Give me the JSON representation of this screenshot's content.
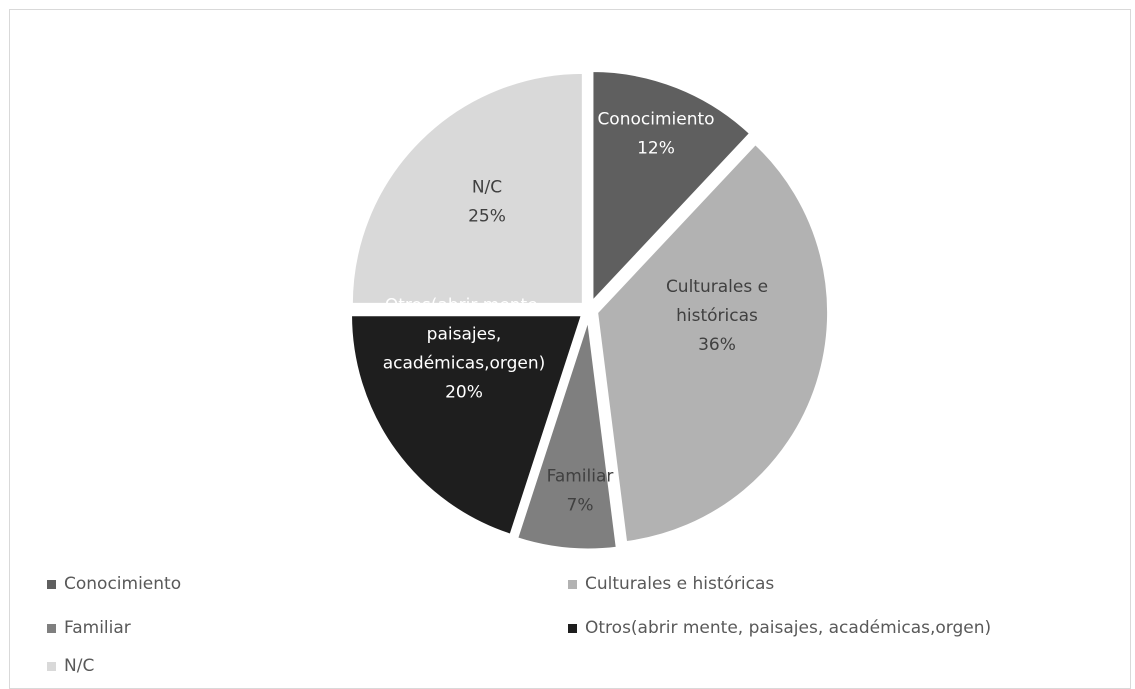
{
  "chart_data": {
    "type": "pie",
    "title": "",
    "legend_position": "bottom",
    "slices": [
      {
        "name": "Conocimiento",
        "label": "Conocimiento",
        "value": 12,
        "percent_label": "12%",
        "color": "#5f5f5f",
        "label_color": "#ffffff"
      },
      {
        "name": "Culturales e históricas",
        "label": "Culturales e históricas",
        "value": 36,
        "percent_label": "36%",
        "color": "#b2b2b2",
        "label_color": "#404040"
      },
      {
        "name": "Familiar",
        "label": "Familiar",
        "value": 7,
        "percent_label": "7%",
        "color": "#7f7f7f",
        "label_color": "#404040"
      },
      {
        "name": "Otros(abrir mente, paisajes, académicas,orgen)",
        "label": "Otros(abrir mente, paisajes, académicas,orgen)",
        "value": 20,
        "percent_label": "20%",
        "color": "#1e1e1e",
        "label_color": "#ffffff"
      },
      {
        "name": "N/C",
        "label": "N/C",
        "value": 25,
        "percent_label": "25%",
        "color": "#d9d9d9",
        "label_color": "#404040"
      }
    ]
  }
}
